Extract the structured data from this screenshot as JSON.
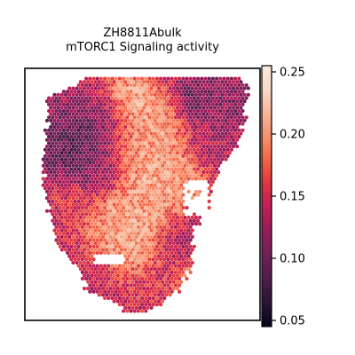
{
  "chart_data": {
    "type": "heatmap",
    "title": [
      "ZH8811Abulk",
      "mTORC1 Signaling activity"
    ],
    "xlabel": "",
    "ylabel": "",
    "grid": false,
    "axes_ticks": false,
    "value_range": [
      0.045,
      0.255
    ],
    "colormap": "rocket",
    "colors": [
      "#03051a",
      "#2b1435",
      "#4c1d4b",
      "#701f57",
      "#961c5b",
      "#be1e5a",
      "#e13342",
      "#f16445",
      "#f6906d",
      "#f6b597",
      "#f8d9c7",
      "#faebdd"
    ],
    "colorbar": {
      "ticks": [
        "0.05",
        "0.10",
        "0.15",
        "0.20",
        "0.25"
      ],
      "tick_values": [
        0.05,
        0.1,
        0.15,
        0.2,
        0.25
      ],
      "placement": "right"
    },
    "tissue_shape": {
      "description": "hexagonal spot grid covering the tissue section",
      "row_extents": [
        {
          "y": 0.97,
          "x": [
            0.42,
            0.52
          ]
        },
        {
          "y": 0.93,
          "x": [
            0.4,
            0.58
          ]
        },
        {
          "y": 0.88,
          "x": [
            0.26,
            0.66
          ]
        },
        {
          "y": 0.8,
          "x": [
            0.24,
            0.7
          ]
        },
        {
          "y": 0.72,
          "x": [
            0.15,
            0.72
          ]
        },
        {
          "y": 0.64,
          "x": [
            0.12,
            0.72
          ]
        },
        {
          "y": 0.56,
          "x": [
            0.1,
            0.78
          ]
        },
        {
          "y": 0.48,
          "x": [
            0.08,
            0.8
          ]
        },
        {
          "y": 0.4,
          "x": [
            0.08,
            0.82
          ]
        },
        {
          "y": 0.32,
          "x": [
            0.08,
            0.9
          ]
        },
        {
          "y": 0.24,
          "x": [
            0.1,
            0.92
          ]
        },
        {
          "y": 0.18,
          "x": [
            0.1,
            0.94
          ]
        },
        {
          "y": 0.12,
          "x": [
            0.08,
            0.94
          ]
        },
        {
          "y": 0.07,
          "x": [
            0.22,
            0.94
          ]
        },
        {
          "y": 0.03,
          "x": [
            0.26,
            0.92
          ]
        }
      ]
    },
    "activity_regions": [
      {
        "x": 0.42,
        "y": 0.62,
        "radius": 0.09,
        "value": 0.22
      },
      {
        "x": 0.47,
        "y": 0.73,
        "radius": 0.05,
        "value": 0.21
      },
      {
        "x": 0.56,
        "y": 0.52,
        "radius": 0.1,
        "value": 0.21
      },
      {
        "x": 0.58,
        "y": 0.4,
        "radius": 0.09,
        "value": 0.22
      },
      {
        "x": 0.5,
        "y": 0.28,
        "radius": 0.08,
        "value": 0.2
      },
      {
        "x": 0.44,
        "y": 0.14,
        "radius": 0.06,
        "value": 0.24
      },
      {
        "x": 0.54,
        "y": 0.2,
        "radius": 0.06,
        "value": 0.21
      },
      {
        "x": 0.72,
        "y": 0.86,
        "radius": 0.06,
        "value": 0.19
      },
      {
        "x": 0.52,
        "y": 0.86,
        "radius": 0.06,
        "value": 0.16
      },
      {
        "x": 0.2,
        "y": 0.52,
        "radius": 0.05,
        "value": 0.16
      },
      {
        "x": 0.3,
        "y": 0.4,
        "radius": 0.07,
        "value": 0.11
      },
      {
        "x": 0.2,
        "y": 0.3,
        "radius": 0.08,
        "value": 0.08
      },
      {
        "x": 0.36,
        "y": 0.2,
        "radius": 0.06,
        "value": 0.1
      },
      {
        "x": 0.78,
        "y": 0.3,
        "radius": 0.06,
        "value": 0.13
      },
      {
        "x": 0.86,
        "y": 0.14,
        "radius": 0.07,
        "value": 0.11
      },
      {
        "x": 0.72,
        "y": 0.12,
        "radius": 0.05,
        "value": 0.1
      },
      {
        "x": 0.16,
        "y": 0.1,
        "radius": 0.05,
        "value": 0.12
      },
      {
        "x": 0.66,
        "y": 0.66,
        "radius": 0.06,
        "value": 0.12
      }
    ],
    "baseline_value": 0.14
  }
}
